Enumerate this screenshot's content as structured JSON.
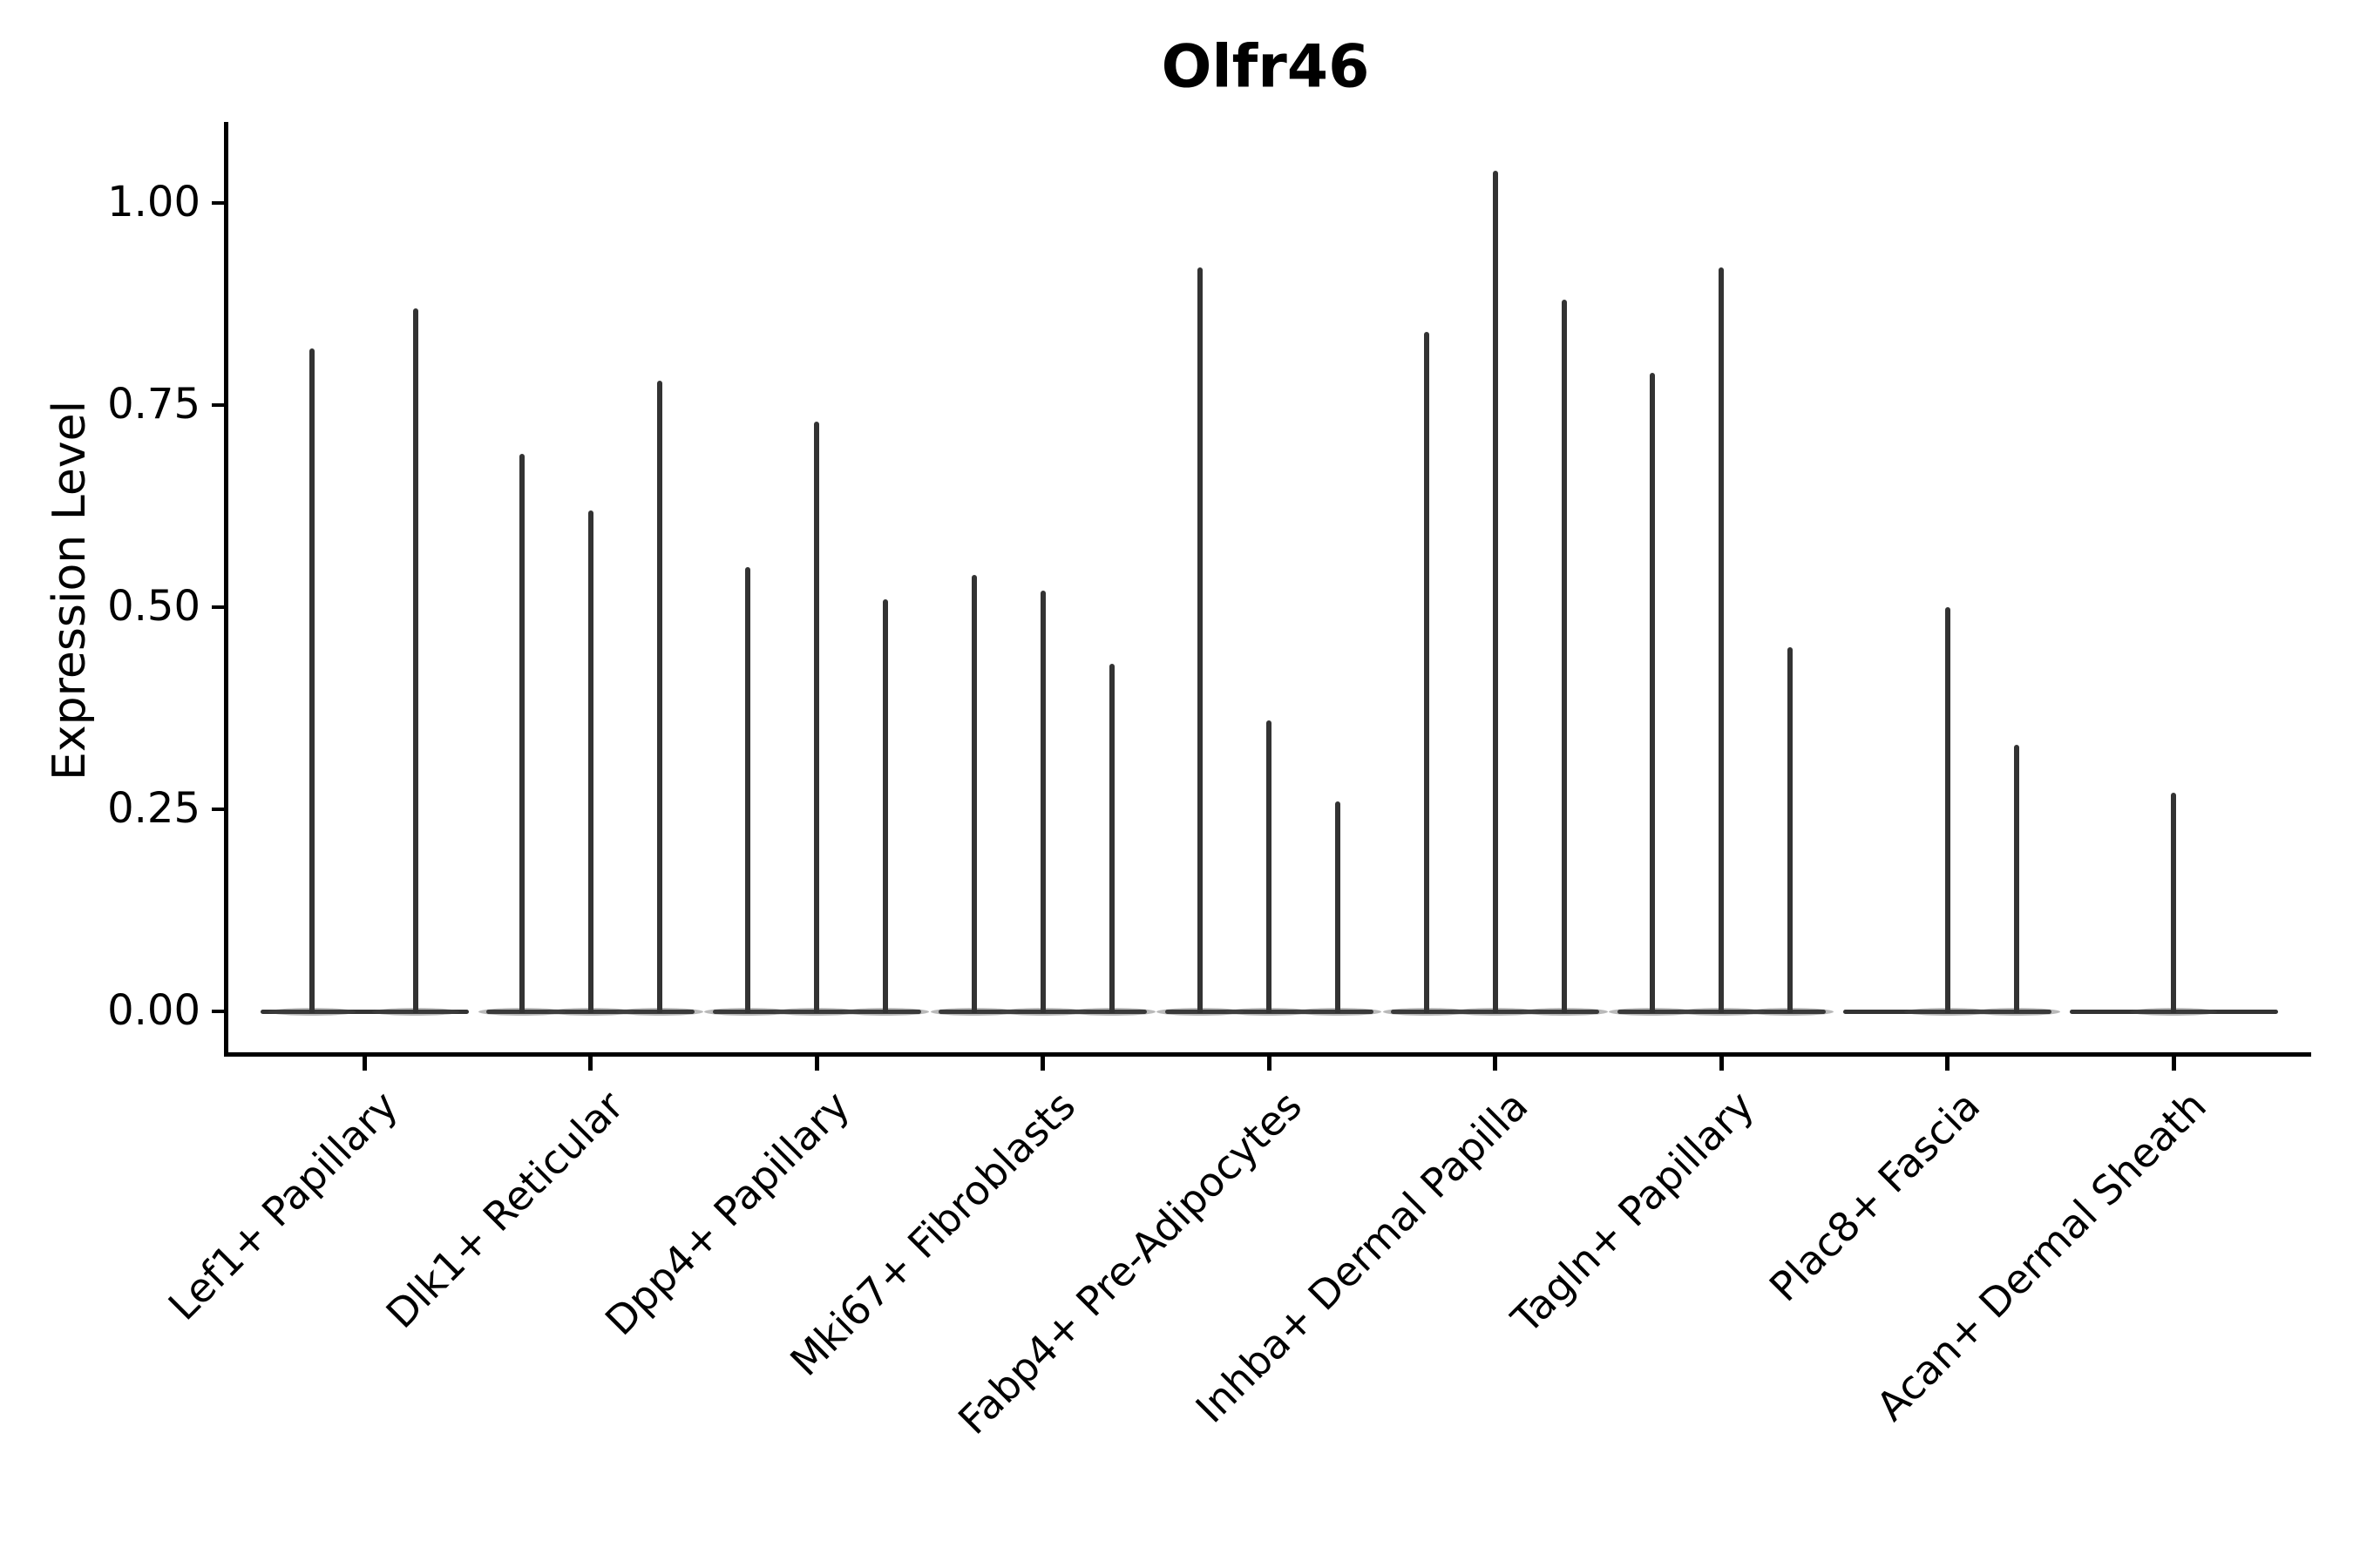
{
  "chart_data": {
    "type": "violin",
    "title": "Olfr46",
    "ylabel": "Expression Level",
    "xlabel": "",
    "ylim": [
      -0.05,
      1.1
    ],
    "grid": false,
    "legend": "none",
    "violin_color": "#333333",
    "axis_color": "#000000",
    "yticks": [
      {
        "label": "0.00",
        "value": 0.0
      },
      {
        "label": "0.25",
        "value": 0.25
      },
      {
        "label": "0.50",
        "value": 0.5
      },
      {
        "label": "0.75",
        "value": 0.75
      },
      {
        "label": "1.00",
        "value": 1.0
      }
    ],
    "categories": [
      {
        "label": "Lef1+ Papillary",
        "violins": [
          {
            "dx": -60,
            "max": 0.82
          },
          {
            "dx": 59,
            "max": 0.87
          }
        ]
      },
      {
        "label": "Dlk1+ Reticular",
        "violins": [
          {
            "dx": -79,
            "max": 0.69
          },
          {
            "dx": 0,
            "max": 0.62
          },
          {
            "dx": 79,
            "max": 0.78
          }
        ]
      },
      {
        "label": "Dpp4+ Papillary",
        "violins": [
          {
            "dx": -79,
            "max": 0.55
          },
          {
            "dx": 0,
            "max": 0.73
          },
          {
            "dx": 79,
            "max": 0.51
          }
        ]
      },
      {
        "label": "Mki67+ Fibroblasts",
        "violins": [
          {
            "dx": -79,
            "max": 0.54
          },
          {
            "dx": 0,
            "max": 0.52
          },
          {
            "dx": 79,
            "max": 0.43
          }
        ]
      },
      {
        "label": "Fabp4+ Pre-Adipocytes",
        "violins": [
          {
            "dx": -79,
            "max": 0.92
          },
          {
            "dx": 0,
            "max": 0.36
          },
          {
            "dx": 79,
            "max": 0.26
          }
        ]
      },
      {
        "label": "Inhba+ Dermal Papilla",
        "violins": [
          {
            "dx": -79,
            "max": 0.84
          },
          {
            "dx": 0,
            "max": 1.04
          },
          {
            "dx": 79,
            "max": 0.88
          }
        ]
      },
      {
        "label": "Tagln+ Papillary",
        "violins": [
          {
            "dx": -79,
            "max": 0.79
          },
          {
            "dx": 0,
            "max": 0.92
          },
          {
            "dx": 79,
            "max": 0.45
          }
        ]
      },
      {
        "label": "Plac8+ Fascia",
        "violins": [
          {
            "dx": 0,
            "max": 0.5
          },
          {
            "dx": 79,
            "max": 0.33
          }
        ]
      },
      {
        "label": "Acan+ Dermal Sheath",
        "violins": [
          {
            "dx": 0,
            "max": 0.27
          }
        ]
      }
    ]
  }
}
